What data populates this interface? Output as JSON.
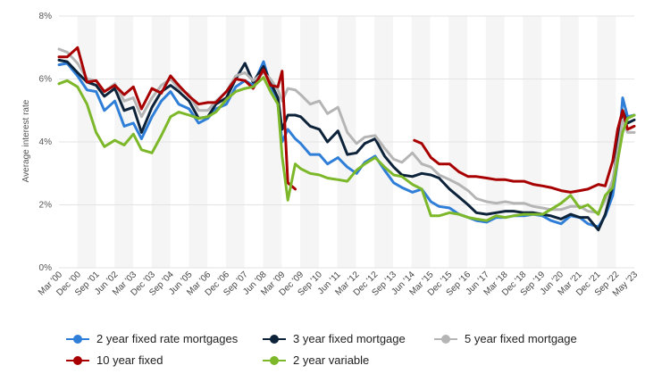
{
  "chart_data": {
    "type": "line",
    "ylabel": "Average interest rate",
    "ylim": [
      0,
      8
    ],
    "yticks": [
      "0%",
      "2%",
      "4%",
      "6%",
      "8%"
    ],
    "x_tick_labels": [
      "Mar '00",
      "Dec '00",
      "Sep '01",
      "Jun '02",
      "Mar '03",
      "Dec '03",
      "Sep '04",
      "Jun '05",
      "Mar '06",
      "Dec '06",
      "Sep '07",
      "Jun '08",
      "Mar '09",
      "Dec '09",
      "Sep '10",
      "Jun '11",
      "Mar '12",
      "Dec '12",
      "Sep '13",
      "Jun '14",
      "Mar '15",
      "Dec '15",
      "Sep '16",
      "Jun '17",
      "Mar '18",
      "Dec '18",
      "Sep '19",
      "Jun '20",
      "Mar '21",
      "Dec '21",
      "Sep '22",
      "May '23"
    ],
    "x_range": [
      2000.17,
      2023.37
    ],
    "grid": true,
    "legend_position": "bottom",
    "series": [
      {
        "name": "2 year fixed rate mortgages",
        "color": "#2f7ed8",
        "x": [
          2000.17,
          2000.5,
          2000.92,
          2001.3,
          2001.67,
          2002.0,
          2002.42,
          2002.8,
          2003.17,
          2003.5,
          2003.92,
          2004.3,
          2004.67,
          2005.0,
          2005.42,
          2005.8,
          2006.17,
          2006.5,
          2006.92,
          2007.3,
          2007.67,
          2008.0,
          2008.42,
          2008.7,
          2009.0,
          2009.17,
          2009.4,
          2009.7,
          2009.92,
          2010.3,
          2010.67,
          2011.0,
          2011.42,
          2011.8,
          2012.17,
          2012.5,
          2012.92,
          2013.3,
          2013.67,
          2014.0,
          2014.42,
          2014.8,
          2015.17,
          2015.5,
          2015.92,
          2016.3,
          2016.67,
          2017.0,
          2017.42,
          2017.8,
          2018.17,
          2018.5,
          2018.92,
          2019.3,
          2019.67,
          2020.0,
          2020.42,
          2020.8,
          2021.17,
          2021.5,
          2021.92,
          2022.2,
          2022.5,
          2022.7,
          2022.9,
          2023.1,
          2023.37
        ],
        "y": [
          6.45,
          6.5,
          6.1,
          5.65,
          5.6,
          5.0,
          5.3,
          4.5,
          4.6,
          4.1,
          4.8,
          5.3,
          5.6,
          5.2,
          5.05,
          4.6,
          4.75,
          5.05,
          5.2,
          5.75,
          5.95,
          5.8,
          6.55,
          5.8,
          5.2,
          4.0,
          4.4,
          4.1,
          3.95,
          3.6,
          3.6,
          3.3,
          3.5,
          3.2,
          3.0,
          3.35,
          3.55,
          3.1,
          2.7,
          2.55,
          2.4,
          2.5,
          2.1,
          1.95,
          1.9,
          1.7,
          1.6,
          1.5,
          1.45,
          1.6,
          1.6,
          1.65,
          1.65,
          1.7,
          1.65,
          1.5,
          1.4,
          1.65,
          1.6,
          1.4,
          1.3,
          1.65,
          2.3,
          3.4,
          5.4,
          4.8,
          4.85
        ]
      },
      {
        "name": "3 year fixed mortgage",
        "color": "#0d233a",
        "x": [
          2000.17,
          2000.5,
          2000.92,
          2001.3,
          2001.67,
          2002.0,
          2002.42,
          2002.8,
          2003.17,
          2003.5,
          2003.92,
          2004.3,
          2004.67,
          2005.0,
          2005.42,
          2005.8,
          2006.17,
          2006.5,
          2006.92,
          2007.3,
          2007.67,
          2008.0,
          2008.42,
          2008.7,
          2009.0,
          2009.17,
          2009.4,
          2009.7,
          2009.92,
          2010.3,
          2010.67,
          2011.0,
          2011.42,
          2011.8,
          2012.17,
          2012.5,
          2012.92,
          2013.3,
          2013.67,
          2014.0,
          2014.42,
          2014.8,
          2015.17,
          2015.5,
          2015.92,
          2016.3,
          2016.67,
          2017.0,
          2017.42,
          2017.8,
          2018.17,
          2018.5,
          2018.92,
          2019.3,
          2019.67,
          2020.0,
          2020.42,
          2020.8,
          2021.17,
          2021.5,
          2021.92,
          2022.2,
          2022.5,
          2022.7,
          2022.9,
          2023.1,
          2023.37
        ],
        "y": [
          6.6,
          6.55,
          6.2,
          5.9,
          5.8,
          5.45,
          5.7,
          5.0,
          5.1,
          4.3,
          5.1,
          5.6,
          5.8,
          5.6,
          5.3,
          4.75,
          4.8,
          5.2,
          5.4,
          6.0,
          6.5,
          5.9,
          6.4,
          5.9,
          5.4,
          4.4,
          4.85,
          4.85,
          4.8,
          4.5,
          4.4,
          4.0,
          4.35,
          3.6,
          3.65,
          3.95,
          4.1,
          3.55,
          3.2,
          2.95,
          2.9,
          3.0,
          2.95,
          2.85,
          2.5,
          2.25,
          2.0,
          1.75,
          1.7,
          1.75,
          1.8,
          1.8,
          1.75,
          1.75,
          1.7,
          1.65,
          1.55,
          1.7,
          1.6,
          1.6,
          1.2,
          1.7,
          2.6,
          4.0,
          5.0,
          4.6,
          4.7
        ]
      },
      {
        "name": "5 year fixed mortgage",
        "color": "#b5b5b5",
        "x": [
          2000.17,
          2000.5,
          2000.92,
          2001.3,
          2001.67,
          2002.0,
          2002.42,
          2002.8,
          2003.17,
          2003.5,
          2003.92,
          2004.3,
          2004.67,
          2005.0,
          2005.42,
          2005.8,
          2006.17,
          2006.5,
          2006.92,
          2007.3,
          2007.67,
          2008.0,
          2008.42,
          2008.7,
          2009.0,
          2009.17,
          2009.4,
          2009.7,
          2009.92,
          2010.3,
          2010.67,
          2011.0,
          2011.42,
          2011.8,
          2012.17,
          2012.5,
          2012.92,
          2013.3,
          2013.67,
          2014.0,
          2014.42,
          2014.8,
          2015.17,
          2015.5,
          2015.92,
          2016.3,
          2016.67,
          2017.0,
          2017.42,
          2017.8,
          2018.17,
          2018.5,
          2018.92,
          2019.3,
          2019.67,
          2020.0,
          2020.42,
          2020.8,
          2021.17,
          2021.5,
          2021.92,
          2022.2,
          2022.5,
          2022.7,
          2022.9,
          2023.1,
          2023.37
        ],
        "y": [
          6.95,
          6.85,
          6.5,
          6.0,
          5.95,
          5.6,
          5.85,
          5.3,
          5.4,
          4.8,
          5.4,
          5.8,
          6.0,
          5.7,
          5.5,
          5.0,
          5.0,
          5.3,
          5.6,
          6.1,
          6.2,
          5.95,
          6.2,
          6.0,
          5.65,
          5.3,
          5.7,
          5.65,
          5.5,
          5.2,
          5.3,
          4.9,
          5.1,
          4.3,
          3.95,
          4.15,
          4.2,
          3.8,
          3.45,
          3.35,
          3.65,
          3.3,
          3.2,
          2.95,
          2.8,
          2.65,
          2.45,
          2.2,
          2.1,
          2.05,
          2.1,
          2.05,
          2.05,
          1.95,
          1.9,
          1.85,
          1.85,
          1.95,
          1.95,
          1.8,
          1.75,
          2.15,
          2.8,
          3.7,
          4.7,
          4.3,
          4.3
        ]
      },
      {
        "name": "10 year fixed",
        "color": "#a80000",
        "x": [
          2000.17,
          2000.5,
          2000.92,
          2001.3,
          2001.67,
          2002.0,
          2002.42,
          2002.8,
          2003.17,
          2003.5,
          2003.92,
          2004.3,
          2004.67,
          2005.0,
          2005.42,
          2005.8,
          2006.17,
          2006.5,
          2006.92,
          2007.3,
          2007.67,
          2008.0,
          2008.42,
          2008.7,
          2009.0,
          2009.17,
          2009.4,
          2009.7,
          null,
          2014.5,
          2014.8,
          2015.17,
          2015.5,
          2015.92,
          2016.3,
          2016.67,
          2017.0,
          2017.42,
          2017.8,
          2018.17,
          2018.5,
          2018.92,
          2019.3,
          2019.67,
          2020.0,
          2020.42,
          2020.8,
          2021.17,
          2021.5,
          2021.92,
          2022.2,
          2022.5,
          2022.7,
          2022.9,
          2023.1,
          2023.37
        ],
        "y": [
          6.7,
          6.7,
          7.0,
          5.9,
          5.95,
          5.6,
          5.8,
          5.5,
          5.75,
          5.05,
          5.7,
          5.55,
          6.1,
          5.8,
          5.45,
          5.2,
          5.25,
          5.25,
          5.6,
          6.0,
          5.95,
          5.7,
          6.3,
          5.8,
          5.75,
          6.25,
          2.7,
          2.5,
          null,
          4.05,
          3.95,
          3.5,
          3.3,
          3.3,
          3.05,
          2.9,
          2.9,
          2.85,
          2.8,
          2.8,
          2.75,
          2.75,
          2.65,
          2.6,
          2.55,
          2.45,
          2.4,
          2.45,
          2.5,
          2.65,
          2.6,
          3.4,
          4.4,
          5.0,
          4.4,
          4.5
        ]
      },
      {
        "name": "2 year variable",
        "color": "#7cb829",
        "x": [
          2000.17,
          2000.5,
          2000.92,
          2001.3,
          2001.67,
          2002.0,
          2002.42,
          2002.8,
          2003.17,
          2003.5,
          2003.92,
          2004.3,
          2004.67,
          2005.0,
          2005.42,
          2005.8,
          2006.17,
          2006.5,
          2006.92,
          2007.3,
          2007.67,
          2008.0,
          2008.42,
          2008.7,
          2009.0,
          2009.17,
          2009.4,
          2009.7,
          2009.92,
          2010.3,
          2010.67,
          2011.0,
          2011.42,
          2011.8,
          2012.17,
          2012.5,
          2012.92,
          2013.3,
          2013.67,
          2014.0,
          2014.42,
          2014.8,
          2015.17,
          2015.5,
          2015.92,
          2016.3,
          2016.67,
          2017.0,
          2017.42,
          2017.8,
          2018.17,
          2018.5,
          2018.92,
          2019.3,
          2019.67,
          2020.0,
          2020.42,
          2020.8,
          2021.17,
          2021.5,
          2021.92,
          2022.2,
          2022.5,
          2022.7,
          2022.9,
          2023.1,
          2023.37
        ],
        "y": [
          5.85,
          5.95,
          5.75,
          5.2,
          4.3,
          3.85,
          4.05,
          3.9,
          4.25,
          3.75,
          3.65,
          4.2,
          4.8,
          4.95,
          4.85,
          4.75,
          4.8,
          4.95,
          5.35,
          5.6,
          5.7,
          5.75,
          6.05,
          5.6,
          5.2,
          3.55,
          2.15,
          3.3,
          3.15,
          3.0,
          2.95,
          2.85,
          2.8,
          2.75,
          3.1,
          3.3,
          3.5,
          3.2,
          2.95,
          2.9,
          2.65,
          2.5,
          1.65,
          1.65,
          1.75,
          1.7,
          1.6,
          1.55,
          1.5,
          1.65,
          1.6,
          1.65,
          1.7,
          1.7,
          1.7,
          1.85,
          2.05,
          2.3,
          1.9,
          2.0,
          1.7,
          2.3,
          2.55,
          3.4,
          4.3,
          4.75,
          4.85
        ]
      }
    ]
  }
}
